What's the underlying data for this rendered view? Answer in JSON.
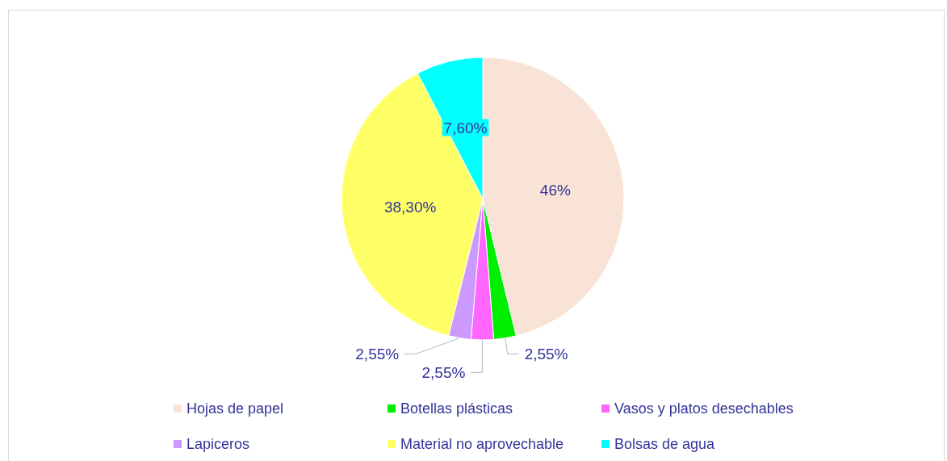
{
  "chart_data": {
    "type": "pie",
    "categories": [
      "Hojas de papel",
      "Botellas plásticas",
      "Vasos y platos desechables",
      "Lapiceros",
      "Material no aprovechable",
      "Bolsas de agua"
    ],
    "values": [
      46,
      2.55,
      2.55,
      2.55,
      38.3,
      7.6
    ],
    "value_labels": [
      "46%",
      "2,55%",
      "2,55%",
      "2,55%",
      "38,30%",
      "7,60%"
    ],
    "colors": [
      "#f9e3d6",
      "#00ee00",
      "#ff66ff",
      "#cc99ff",
      "#ffff66",
      "#00ffff"
    ],
    "legend": "bottom"
  }
}
